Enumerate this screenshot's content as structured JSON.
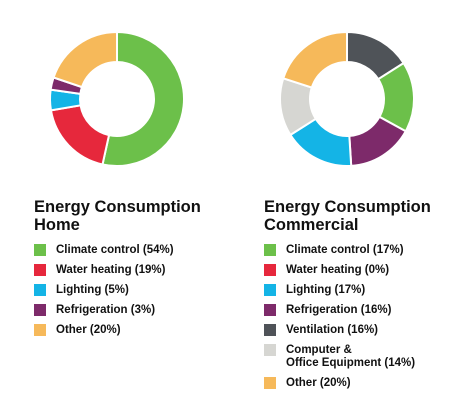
{
  "chart_data": [
    {
      "type": "pie",
      "donut": true,
      "title": "Energy Consumption Home",
      "title_lines": [
        "Energy Consumption",
        "Home"
      ],
      "slices": [
        {
          "label": "Climate control",
          "value": 54,
          "color": "#6cc04a"
        },
        {
          "label": "Water heating",
          "value": 19,
          "color": "#e6283c"
        },
        {
          "label": "Lighting",
          "value": 5,
          "color": "#14b4e6"
        },
        {
          "label": "Refrigeration",
          "value": 3,
          "color": "#7d2a6a"
        },
        {
          "label": "Other",
          "value": 20,
          "color": "#f6b95a"
        }
      ],
      "legend_text": [
        "Climate control (54%)",
        "Water heating (19%)",
        "Lighting (5%)",
        "Refrigeration (3%)",
        "Other (20%)"
      ],
      "legend_placement": "bottom"
    },
    {
      "type": "pie",
      "donut": true,
      "title": "Energy Consumption Commercial",
      "title_lines": [
        "Energy Consumption",
        "Commercial"
      ],
      "slices": [
        {
          "label": "Ventilation",
          "value": 16,
          "color": "#4f5358"
        },
        {
          "label": "Climate control",
          "value": 17,
          "color": "#6cc04a"
        },
        {
          "label": "Refrigeration",
          "value": 16,
          "color": "#7d2a6a"
        },
        {
          "label": "Lighting",
          "value": 17,
          "color": "#14b4e6"
        },
        {
          "label": "Computer & Office Equipment",
          "value": 14,
          "color": "#d6d6d2"
        },
        {
          "label": "Other",
          "value": 20,
          "color": "#f6b95a"
        }
      ],
      "legend": [
        {
          "text": "Climate control (17%)",
          "color": "#6cc04a"
        },
        {
          "text": "Water heating (0%)",
          "color": "#e6283c"
        },
        {
          "text": "Lighting (17%)",
          "color": "#14b4e6"
        },
        {
          "text": "Refrigeration (16%)",
          "color": "#7d2a6a"
        },
        {
          "text": "Ventilation (16%)",
          "color": "#4f5358"
        },
        {
          "text": "Computer &\nOffice Equipment (14%)",
          "color": "#d6d6d2"
        },
        {
          "text": "Other (20%)",
          "color": "#f6b95a"
        }
      ],
      "legend_placement": "bottom"
    }
  ]
}
